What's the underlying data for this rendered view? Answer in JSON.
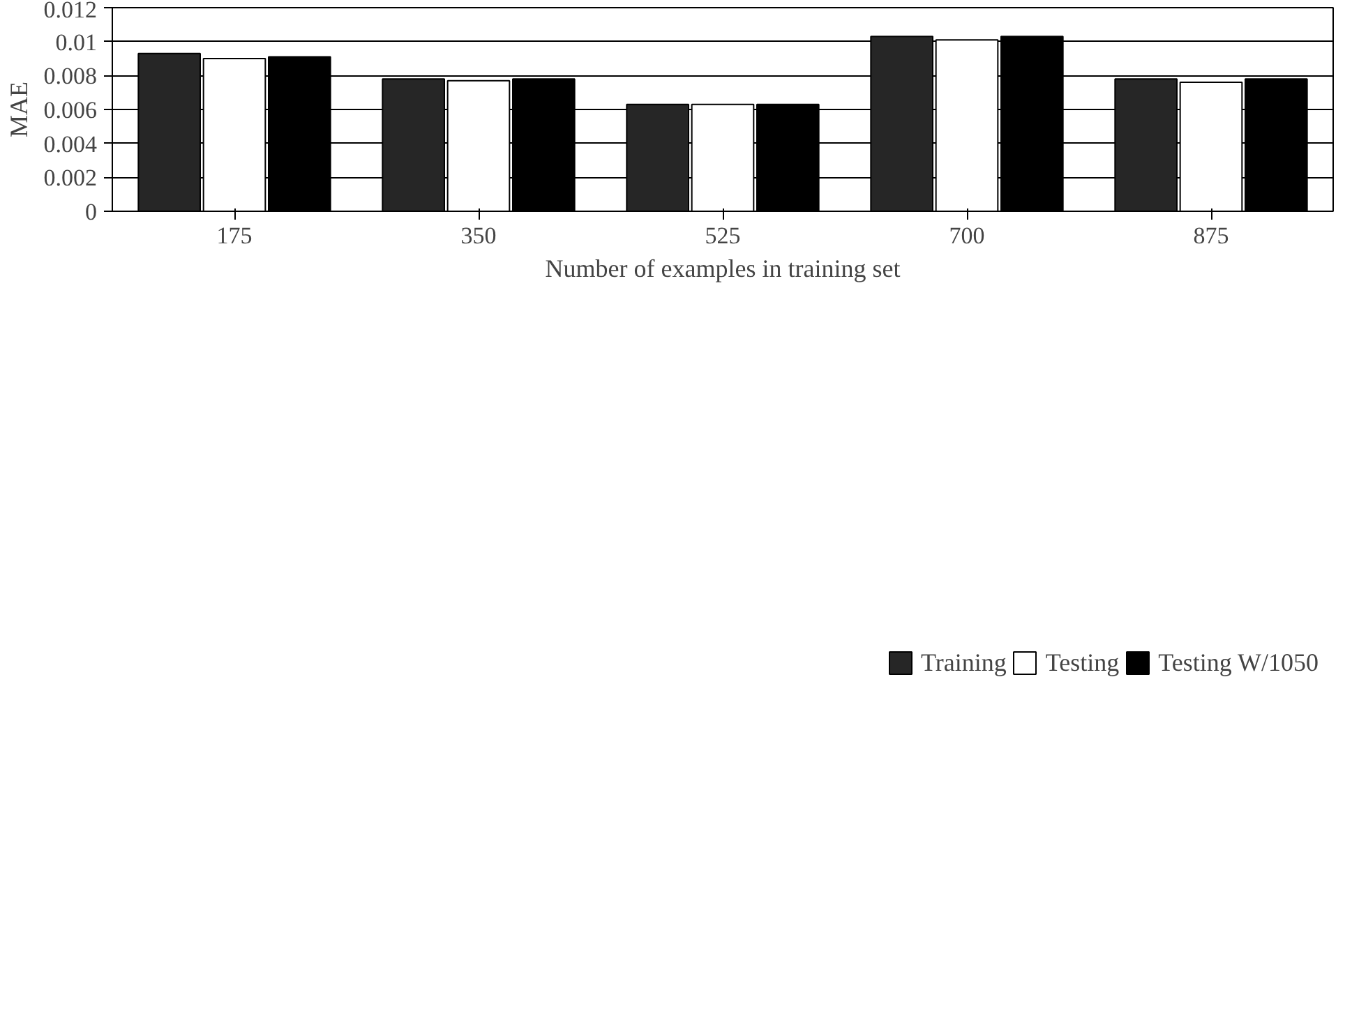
{
  "chart_data": {
    "type": "bar",
    "xlabel": "Number of examples in training set",
    "ylabel": "MAE",
    "categories": [
      "175",
      "350",
      "525",
      "700",
      "875"
    ],
    "series": [
      {
        "name": "Training",
        "color": "#262626",
        "values": [
          0.0093,
          0.0078,
          0.0063,
          0.0103,
          0.0078
        ]
      },
      {
        "name": "Testing",
        "color": "#ffffff",
        "values": [
          0.009,
          0.0077,
          0.0063,
          0.0101,
          0.0076
        ]
      },
      {
        "name": "Testing W/1050",
        "color": "#000000",
        "values": [
          0.0091,
          0.0078,
          0.0063,
          0.0103,
          0.0078
        ]
      }
    ],
    "ylim": [
      0,
      0.012
    ],
    "yticks": [
      0,
      0.002,
      0.004,
      0.006,
      0.008,
      0.01,
      0.012
    ],
    "grid": "y",
    "legend": "bottom"
  }
}
